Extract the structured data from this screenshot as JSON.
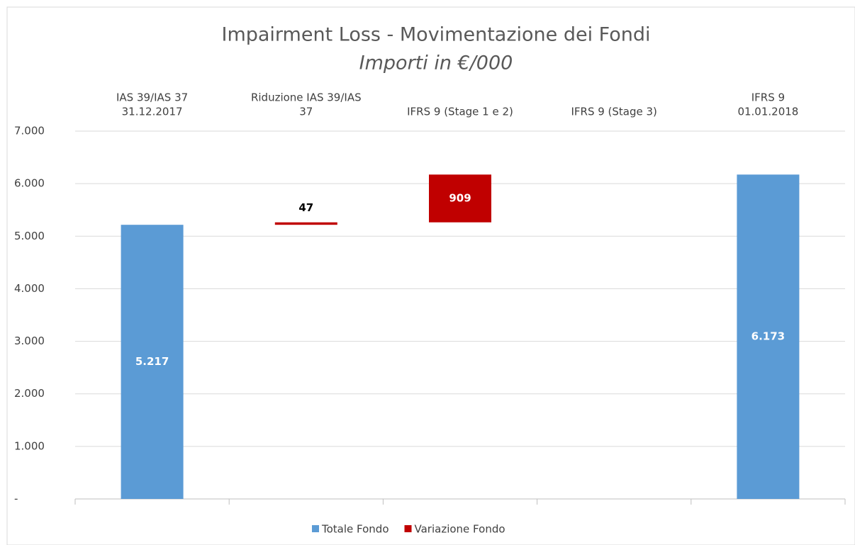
{
  "chart_data": {
    "type": "waterfall",
    "title": "Impairment Loss - Movimentazione dei Fondi",
    "subtitle": "Importi in €/000",
    "categories": [
      [
        "IAS 39/IAS 37",
        "31.12.2017"
      ],
      [
        "Riduzione IAS 39/IAS",
        "37"
      ],
      [
        "IFRS 9 (Stage 1 e 2)"
      ],
      [
        "IFRS 9 (Stage 3)"
      ],
      [
        "IFRS 9",
        "01.01.2018"
      ]
    ],
    "series": [
      {
        "name": "Totale Fondo",
        "color": "#5b9bd5",
        "values": [
          5217,
          null,
          null,
          null,
          6173
        ],
        "value_labels": [
          "5.217",
          null,
          null,
          null,
          "6.173"
        ]
      },
      {
        "name": "Variazione Fondo",
        "color": "#c00000",
        "values": [
          null,
          47,
          909,
          null,
          null
        ]
      }
    ],
    "ylim": [
      0,
      7000
    ],
    "yticks": [
      {
        "value": 0,
        "label": "-"
      },
      {
        "value": 1000,
        "label": "1.000"
      },
      {
        "value": 2000,
        "label": "2.000"
      },
      {
        "value": 3000,
        "label": "3.000"
      },
      {
        "value": 4000,
        "label": "4.000"
      },
      {
        "value": 5000,
        "label": "5.000"
      },
      {
        "value": 6000,
        "label": "6.000"
      },
      {
        "value": 7000,
        "label": "7.000"
      }
    ],
    "grid": true,
    "legend": "bottom"
  }
}
